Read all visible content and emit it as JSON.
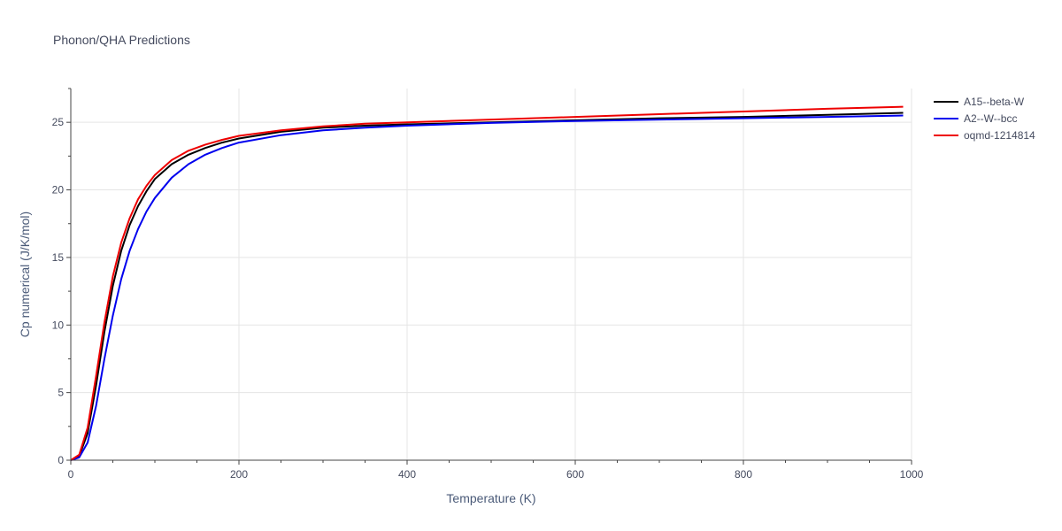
{
  "chart_data": {
    "type": "line",
    "title": "Phonon/QHA Predictions",
    "xlabel": "Temperature (K)",
    "ylabel": "Cp numerical (J/K/mol)",
    "xlim": [
      0,
      1000
    ],
    "ylim": [
      0,
      27.5
    ],
    "x_ticks": [
      0,
      200,
      400,
      600,
      800,
      1000
    ],
    "y_ticks": [
      0,
      5,
      10,
      15,
      20,
      25
    ],
    "grid": true,
    "legend_position": "top-right",
    "series": [
      {
        "name": "A15--beta-W",
        "color": "#000000",
        "x": [
          0,
          10,
          20,
          30,
          40,
          50,
          60,
          70,
          80,
          90,
          100,
          120,
          140,
          160,
          180,
          200,
          250,
          300,
          350,
          400,
          500,
          600,
          700,
          800,
          900,
          990
        ],
        "y": [
          0,
          0.3,
          2.0,
          5.5,
          9.5,
          12.9,
          15.5,
          17.4,
          18.8,
          19.9,
          20.8,
          21.9,
          22.6,
          23.1,
          23.5,
          23.8,
          24.3,
          24.6,
          24.75,
          24.85,
          25.0,
          25.15,
          25.3,
          25.4,
          25.55,
          25.7
        ]
      },
      {
        "name": "A2--W--bcc",
        "color": "#0000ee",
        "x": [
          0,
          10,
          20,
          30,
          40,
          50,
          60,
          70,
          80,
          90,
          100,
          120,
          140,
          160,
          180,
          200,
          250,
          300,
          350,
          400,
          500,
          600,
          700,
          800,
          900,
          990
        ],
        "y": [
          0,
          0.2,
          1.3,
          4.0,
          7.5,
          10.7,
          13.4,
          15.5,
          17.1,
          18.4,
          19.4,
          20.9,
          21.9,
          22.6,
          23.1,
          23.5,
          24.05,
          24.4,
          24.6,
          24.75,
          24.95,
          25.1,
          25.2,
          25.3,
          25.4,
          25.5
        ]
      },
      {
        "name": "oqmd-1214814",
        "color": "#ee0000",
        "x": [
          0,
          10,
          20,
          30,
          40,
          50,
          60,
          70,
          80,
          90,
          100,
          120,
          140,
          160,
          180,
          200,
          250,
          300,
          350,
          400,
          500,
          600,
          700,
          800,
          900,
          990
        ],
        "y": [
          0,
          0.4,
          2.4,
          6.2,
          10.2,
          13.6,
          16.1,
          17.9,
          19.3,
          20.3,
          21.1,
          22.2,
          22.9,
          23.35,
          23.7,
          24.0,
          24.4,
          24.7,
          24.9,
          25.0,
          25.2,
          25.4,
          25.6,
          25.8,
          26.0,
          26.15
        ]
      }
    ]
  }
}
